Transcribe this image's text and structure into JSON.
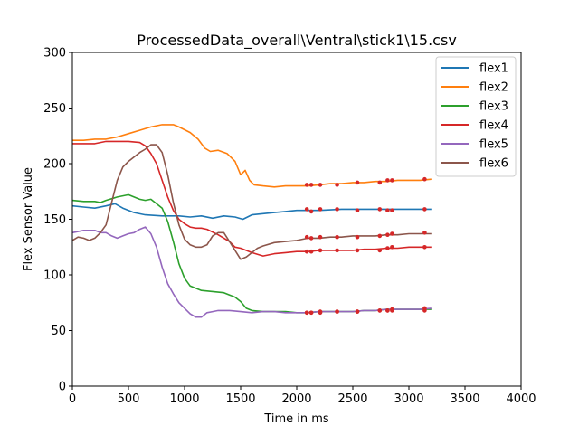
{
  "chart_data": {
    "type": "line",
    "title": "ProcessedData_overall\\Ventral\\stick1\\15.csv",
    "xlabel": "Time in ms",
    "ylabel": "Flex Sensor Value",
    "xlim": [
      0,
      4000
    ],
    "ylim": [
      0,
      300
    ],
    "xticks": [
      0,
      500,
      1000,
      1500,
      2000,
      2500,
      3000,
      3500,
      4000
    ],
    "yticks": [
      0,
      50,
      100,
      150,
      200,
      250,
      300
    ],
    "grid": false,
    "legend_position": "top-right",
    "marker_color": "#d62728",
    "series": [
      {
        "name": "flex1",
        "color": "#1f77b4",
        "points": [
          [
            0,
            162
          ],
          [
            100,
            161
          ],
          [
            200,
            160
          ],
          [
            300,
            162
          ],
          [
            380,
            164
          ],
          [
            450,
            160
          ],
          [
            550,
            156
          ],
          [
            650,
            154
          ],
          [
            800,
            153
          ],
          [
            950,
            153
          ],
          [
            1050,
            152
          ],
          [
            1150,
            153
          ],
          [
            1250,
            151
          ],
          [
            1350,
            153
          ],
          [
            1450,
            152
          ],
          [
            1520,
            150
          ],
          [
            1600,
            154
          ],
          [
            1700,
            155
          ],
          [
            1800,
            156
          ],
          [
            1900,
            157
          ],
          [
            2000,
            158
          ],
          [
            2100,
            158
          ],
          [
            2200,
            158
          ],
          [
            2400,
            159
          ],
          [
            2600,
            159
          ],
          [
            2800,
            159
          ],
          [
            3000,
            159
          ],
          [
            3100,
            159
          ],
          [
            3200,
            159
          ]
        ],
        "markers": [
          [
            2090,
            159
          ],
          [
            2130,
            157
          ],
          [
            2210,
            159
          ],
          [
            2360,
            159
          ],
          [
            2540,
            158
          ],
          [
            2740,
            159
          ],
          [
            2810,
            158
          ],
          [
            2850,
            158
          ],
          [
            3140,
            159
          ]
        ]
      },
      {
        "name": "flex2",
        "color": "#ff7f0e",
        "points": [
          [
            0,
            221
          ],
          [
            100,
            221
          ],
          [
            200,
            222
          ],
          [
            300,
            222
          ],
          [
            400,
            224
          ],
          [
            500,
            227
          ],
          [
            600,
            230
          ],
          [
            700,
            233
          ],
          [
            800,
            235
          ],
          [
            900,
            235
          ],
          [
            950,
            233
          ],
          [
            1050,
            228
          ],
          [
            1120,
            222
          ],
          [
            1180,
            214
          ],
          [
            1230,
            211
          ],
          [
            1300,
            212
          ],
          [
            1380,
            209
          ],
          [
            1450,
            202
          ],
          [
            1500,
            190
          ],
          [
            1540,
            194
          ],
          [
            1580,
            185
          ],
          [
            1620,
            181
          ],
          [
            1700,
            180
          ],
          [
            1800,
            179
          ],
          [
            1900,
            180
          ],
          [
            2000,
            180
          ],
          [
            2100,
            180
          ],
          [
            2200,
            181
          ],
          [
            2300,
            182
          ],
          [
            2400,
            182
          ],
          [
            2500,
            183
          ],
          [
            2600,
            183
          ],
          [
            2700,
            184
          ],
          [
            2800,
            184
          ],
          [
            2900,
            185
          ],
          [
            3000,
            185
          ],
          [
            3100,
            185
          ],
          [
            3200,
            186
          ]
        ],
        "markers": [
          [
            2090,
            181
          ],
          [
            2130,
            181
          ],
          [
            2210,
            181
          ],
          [
            2360,
            181
          ],
          [
            2540,
            183
          ],
          [
            2740,
            183
          ],
          [
            2810,
            185
          ],
          [
            2850,
            185
          ],
          [
            3140,
            186
          ]
        ]
      },
      {
        "name": "flex3",
        "color": "#2ca02c",
        "points": [
          [
            0,
            167
          ],
          [
            100,
            166
          ],
          [
            200,
            166
          ],
          [
            250,
            165
          ],
          [
            300,
            167
          ],
          [
            400,
            170
          ],
          [
            500,
            172
          ],
          [
            550,
            170
          ],
          [
            600,
            168
          ],
          [
            650,
            167
          ],
          [
            700,
            168
          ],
          [
            800,
            160
          ],
          [
            850,
            148
          ],
          [
            900,
            130
          ],
          [
            950,
            110
          ],
          [
            1000,
            97
          ],
          [
            1050,
            90
          ],
          [
            1100,
            88
          ],
          [
            1150,
            86
          ],
          [
            1250,
            85
          ],
          [
            1350,
            84
          ],
          [
            1450,
            80
          ],
          [
            1500,
            76
          ],
          [
            1550,
            70
          ],
          [
            1600,
            68
          ],
          [
            1700,
            67
          ],
          [
            1800,
            67
          ],
          [
            1900,
            67
          ],
          [
            2000,
            66
          ],
          [
            2100,
            66
          ],
          [
            2200,
            67
          ],
          [
            2300,
            67
          ],
          [
            2400,
            67
          ],
          [
            2500,
            67
          ],
          [
            2600,
            68
          ],
          [
            2700,
            68
          ],
          [
            2800,
            69
          ],
          [
            2900,
            69
          ],
          [
            3000,
            69
          ],
          [
            3100,
            69
          ],
          [
            3200,
            69
          ]
        ],
        "markers": [
          [
            2090,
            66
          ],
          [
            2130,
            66
          ],
          [
            2210,
            66
          ],
          [
            2360,
            67
          ],
          [
            2540,
            67
          ],
          [
            2740,
            68
          ],
          [
            2810,
            68
          ],
          [
            2850,
            68
          ],
          [
            3140,
            68
          ]
        ]
      },
      {
        "name": "flex4",
        "color": "#d62728",
        "points": [
          [
            0,
            218
          ],
          [
            100,
            218
          ],
          [
            200,
            218
          ],
          [
            300,
            220
          ],
          [
            400,
            220
          ],
          [
            500,
            220
          ],
          [
            600,
            219
          ],
          [
            650,
            216
          ],
          [
            700,
            209
          ],
          [
            750,
            200
          ],
          [
            800,
            185
          ],
          [
            850,
            170
          ],
          [
            900,
            158
          ],
          [
            950,
            150
          ],
          [
            1000,
            146
          ],
          [
            1050,
            143
          ],
          [
            1100,
            142
          ],
          [
            1150,
            142
          ],
          [
            1200,
            141
          ],
          [
            1300,
            136
          ],
          [
            1400,
            130
          ],
          [
            1450,
            125
          ],
          [
            1500,
            124
          ],
          [
            1600,
            120
          ],
          [
            1700,
            117
          ],
          [
            1800,
            119
          ],
          [
            1900,
            120
          ],
          [
            2000,
            121
          ],
          [
            2100,
            121
          ],
          [
            2200,
            122
          ],
          [
            2300,
            122
          ],
          [
            2400,
            122
          ],
          [
            2500,
            122
          ],
          [
            2600,
            123
          ],
          [
            2700,
            123
          ],
          [
            2800,
            124
          ],
          [
            2900,
            124
          ],
          [
            3000,
            125
          ],
          [
            3100,
            125
          ],
          [
            3200,
            125
          ]
        ],
        "markers": [
          [
            2090,
            121
          ],
          [
            2130,
            121
          ],
          [
            2210,
            122
          ],
          [
            2360,
            122
          ],
          [
            2540,
            122
          ],
          [
            2740,
            122
          ],
          [
            2810,
            124
          ],
          [
            2850,
            125
          ],
          [
            3140,
            125
          ]
        ]
      },
      {
        "name": "flex5",
        "color": "#9467bd",
        "points": [
          [
            0,
            138
          ],
          [
            100,
            140
          ],
          [
            200,
            140
          ],
          [
            250,
            138
          ],
          [
            300,
            138
          ],
          [
            350,
            135
          ],
          [
            400,
            133
          ],
          [
            450,
            135
          ],
          [
            500,
            137
          ],
          [
            550,
            138
          ],
          [
            600,
            141
          ],
          [
            650,
            143
          ],
          [
            700,
            137
          ],
          [
            750,
            125
          ],
          [
            800,
            107
          ],
          [
            850,
            92
          ],
          [
            900,
            83
          ],
          [
            950,
            75
          ],
          [
            1000,
            70
          ],
          [
            1050,
            65
          ],
          [
            1100,
            62
          ],
          [
            1150,
            62
          ],
          [
            1200,
            66
          ],
          [
            1250,
            67
          ],
          [
            1300,
            68
          ],
          [
            1400,
            68
          ],
          [
            1500,
            67
          ],
          [
            1600,
            66
          ],
          [
            1700,
            67
          ],
          [
            1800,
            67
          ],
          [
            1900,
            66
          ],
          [
            2000,
            66
          ],
          [
            2100,
            66
          ],
          [
            2200,
            67
          ],
          [
            2300,
            67
          ],
          [
            2400,
            67
          ],
          [
            2500,
            67
          ],
          [
            2600,
            68
          ],
          [
            2700,
            68
          ],
          [
            2800,
            69
          ],
          [
            2900,
            69
          ],
          [
            3000,
            69
          ],
          [
            3100,
            69
          ],
          [
            3200,
            70
          ]
        ],
        "markers": [
          [
            2090,
            66
          ],
          [
            2130,
            66
          ],
          [
            2210,
            67
          ],
          [
            2360,
            67
          ],
          [
            2540,
            67
          ],
          [
            2740,
            68
          ],
          [
            2810,
            68
          ],
          [
            2850,
            69
          ],
          [
            3140,
            70
          ]
        ]
      },
      {
        "name": "flex6",
        "color": "#8c564b",
        "points": [
          [
            0,
            131
          ],
          [
            50,
            134
          ],
          [
            100,
            133
          ],
          [
            150,
            131
          ],
          [
            200,
            133
          ],
          [
            250,
            138
          ],
          [
            300,
            145
          ],
          [
            350,
            165
          ],
          [
            400,
            185
          ],
          [
            450,
            197
          ],
          [
            500,
            202
          ],
          [
            550,
            206
          ],
          [
            600,
            210
          ],
          [
            650,
            213
          ],
          [
            700,
            217
          ],
          [
            750,
            217
          ],
          [
            800,
            210
          ],
          [
            850,
            190
          ],
          [
            900,
            165
          ],
          [
            950,
            145
          ],
          [
            1000,
            132
          ],
          [
            1050,
            127
          ],
          [
            1100,
            125
          ],
          [
            1150,
            125
          ],
          [
            1200,
            127
          ],
          [
            1250,
            135
          ],
          [
            1300,
            138
          ],
          [
            1350,
            138
          ],
          [
            1400,
            130
          ],
          [
            1450,
            122
          ],
          [
            1500,
            114
          ],
          [
            1550,
            116
          ],
          [
            1600,
            120
          ],
          [
            1650,
            124
          ],
          [
            1700,
            126
          ],
          [
            1800,
            129
          ],
          [
            1900,
            130
          ],
          [
            2000,
            131
          ],
          [
            2100,
            133
          ],
          [
            2200,
            133
          ],
          [
            2300,
            134
          ],
          [
            2400,
            134
          ],
          [
            2500,
            135
          ],
          [
            2600,
            135
          ],
          [
            2700,
            135
          ],
          [
            2800,
            136
          ],
          [
            2900,
            136
          ],
          [
            3000,
            137
          ],
          [
            3100,
            137
          ],
          [
            3200,
            137
          ]
        ],
        "markers": [
          [
            2090,
            134
          ],
          [
            2130,
            133
          ],
          [
            2210,
            134
          ],
          [
            2360,
            134
          ],
          [
            2540,
            134
          ],
          [
            2740,
            135
          ],
          [
            2810,
            136
          ],
          [
            2850,
            137
          ],
          [
            3140,
            138
          ]
        ]
      }
    ]
  }
}
